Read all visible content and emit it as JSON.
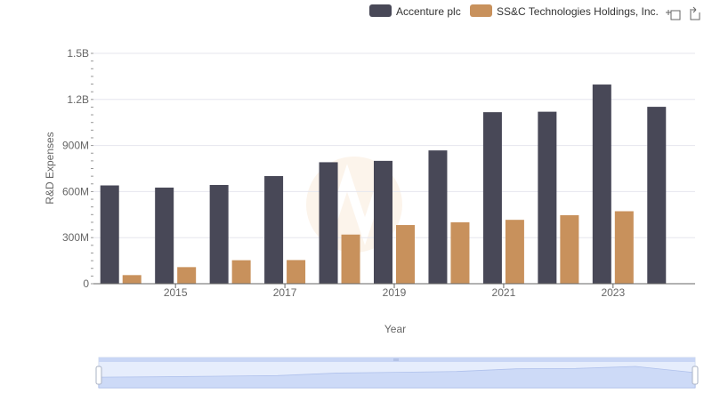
{
  "colors": {
    "accenture": "#484857",
    "ssc": "#c8915c",
    "grid": "#e6e6ee",
    "axis": "#666666",
    "slider_fill": "#d7e2fb",
    "slider_stroke": "#aabbee"
  },
  "toolbar": {
    "zoom_icon": "zoom-icon",
    "restore_icon": "restore-icon"
  },
  "chart_data": {
    "type": "bar",
    "xlabel": "Year",
    "ylabel": "R&D Expenses",
    "ylim": [
      0,
      1500000000
    ],
    "y_ticks": [
      {
        "value": 0,
        "label": "0"
      },
      {
        "value": 300000000,
        "label": "300M"
      },
      {
        "value": 600000000,
        "label": "600M"
      },
      {
        "value": 900000000,
        "label": "900M"
      },
      {
        "value": 1200000000,
        "label": "1.2B"
      },
      {
        "value": 1500000000,
        "label": "1.5B"
      }
    ],
    "categories": [
      "2014",
      "2015",
      "2016",
      "2017",
      "2018",
      "2019",
      "2020",
      "2021",
      "2022",
      "2023",
      "2024"
    ],
    "x_tick_labels": [
      "2015",
      "2017",
      "2019",
      "2021",
      "2023"
    ],
    "legend_position": "top-right",
    "grid": true,
    "series": [
      {
        "name": "Accenture plc",
        "color_key": "accenture",
        "values": [
          640000000,
          626000000,
          643000000,
          701000000,
          791000000,
          800000000,
          868000000,
          1117000000,
          1120000000,
          1297000000,
          1152000000
        ]
      },
      {
        "name": "SS&C Technologies Holdings, Inc.",
        "color_key": "ssc",
        "values": [
          56000000,
          108000000,
          153000000,
          154000000,
          320000000,
          382000000,
          400000000,
          416000000,
          446000000,
          472000000,
          null
        ]
      }
    ]
  }
}
